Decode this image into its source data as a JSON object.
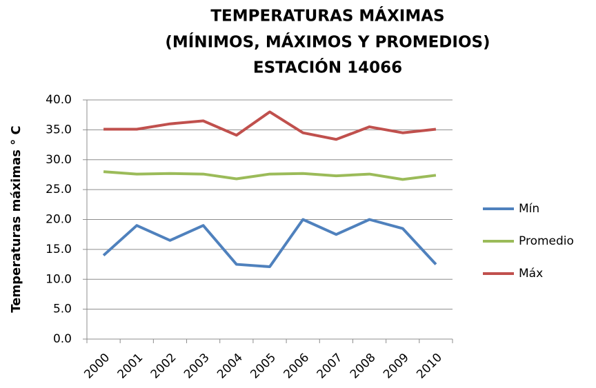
{
  "chart_data": {
    "type": "line",
    "title": [
      "TEMPERATURAS MÁXIMAS",
      "(MÍNIMOS, MÁXIMOS Y PROMEDIOS)",
      "ESTACIÓN 14066"
    ],
    "ylabel": "Temperaturas máximas ° C",
    "categories": [
      "2000",
      "2001",
      "2002",
      "2003",
      "2004",
      "2005",
      "2006",
      "2007",
      "2008",
      "2009",
      "2010"
    ],
    "series": [
      {
        "name": "Mín",
        "color": "#4f81bd",
        "values": [
          14.0,
          19.0,
          16.5,
          19.0,
          12.5,
          12.1,
          20.0,
          17.5,
          20.0,
          18.5,
          12.5
        ]
      },
      {
        "name": "Promedio",
        "color": "#9bbb59",
        "values": [
          28.0,
          27.6,
          27.7,
          27.6,
          26.8,
          27.6,
          27.7,
          27.3,
          27.6,
          26.7,
          27.4
        ]
      },
      {
        "name": "Máx",
        "color": "#c0504d",
        "values": [
          35.1,
          35.1,
          36.0,
          36.5,
          34.1,
          38.0,
          34.5,
          33.4,
          35.5,
          34.5,
          35.1
        ]
      }
    ],
    "ylim": [
      0,
      40
    ],
    "yticks": [
      {
        "value": 0,
        "label": "0.0"
      },
      {
        "value": 5,
        "label": "5.0"
      },
      {
        "value": 10,
        "label": "10.0"
      },
      {
        "value": 15,
        "label": "15.0"
      },
      {
        "value": 20,
        "label": "20.0"
      },
      {
        "value": 25,
        "label": "25.0"
      },
      {
        "value": 30,
        "label": "30.0"
      },
      {
        "value": 35,
        "label": "35.0"
      },
      {
        "value": 40,
        "label": "40.0"
      }
    ],
    "grid": true,
    "legend": "right"
  }
}
